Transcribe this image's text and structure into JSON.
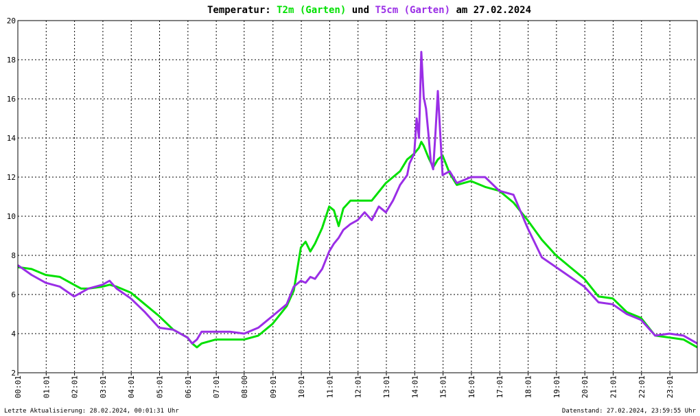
{
  "chart_data": {
    "type": "line",
    "title_parts": [
      {
        "text": "Temperatur: ",
        "color": "#000000"
      },
      {
        "text": "T2m (Garten)",
        "color": "#00e000"
      },
      {
        "text": " und ",
        "color": "#000000"
      },
      {
        "text": "T5cm (Garten)",
        "color": "#9a2ee6"
      },
      {
        "text": " am 27.02.2024",
        "color": "#000000"
      }
    ],
    "xlabel": "",
    "ylabel": "",
    "ylim": [
      2,
      20
    ],
    "yticks": [
      "2",
      "4",
      "6",
      "8",
      "10",
      "12",
      "14",
      "16",
      "18",
      "20"
    ],
    "xlim": [
      "00:01",
      "23:59"
    ],
    "xticks": [
      "00:01",
      "01:01",
      "02:01",
      "03:01",
      "04:01",
      "05:01",
      "06:01",
      "07:01",
      "08:00",
      "09:01",
      "10:01",
      "11:01",
      "12:01",
      "13:01",
      "14:01",
      "15:01",
      "16:01",
      "17:01",
      "18:01",
      "19:01",
      "20:01",
      "21:01",
      "22:01",
      "23:01"
    ],
    "grid": true,
    "series": [
      {
        "name": "T2m (Garten)",
        "color": "#00e000",
        "x": [
          "00:01",
          "00:30",
          "01:00",
          "01:30",
          "02:00",
          "02:15",
          "02:30",
          "03:00",
          "03:15",
          "03:30",
          "04:00",
          "04:30",
          "05:00",
          "05:30",
          "06:00",
          "06:10",
          "06:20",
          "06:30",
          "07:00",
          "07:30",
          "08:00",
          "08:30",
          "09:00",
          "09:30",
          "09:45",
          "10:00",
          "10:10",
          "10:20",
          "10:30",
          "10:45",
          "11:00",
          "11:10",
          "11:20",
          "11:30",
          "11:45",
          "12:00",
          "12:30",
          "13:00",
          "13:30",
          "13:45",
          "14:00",
          "14:10",
          "14:15",
          "14:20",
          "14:30",
          "14:40",
          "14:50",
          "15:00",
          "15:15",
          "15:30",
          "16:00",
          "16:30",
          "17:00",
          "17:30",
          "18:00",
          "18:30",
          "19:00",
          "19:30",
          "20:00",
          "20:30",
          "21:00",
          "21:30",
          "22:00",
          "22:30",
          "23:00",
          "23:30",
          "23:59"
        ],
        "y": [
          7.4,
          7.3,
          7.0,
          6.9,
          6.5,
          6.3,
          6.3,
          6.4,
          6.5,
          6.4,
          6.1,
          5.5,
          4.9,
          4.2,
          3.8,
          3.5,
          3.3,
          3.5,
          3.7,
          3.7,
          3.7,
          3.9,
          4.5,
          5.4,
          6.2,
          8.4,
          8.7,
          8.2,
          8.6,
          9.4,
          10.5,
          10.3,
          9.5,
          10.4,
          10.8,
          10.8,
          10.8,
          11.7,
          12.3,
          12.9,
          13.2,
          13.5,
          13.8,
          13.6,
          13.0,
          12.5,
          12.9,
          13.1,
          12.2,
          11.6,
          11.8,
          11.5,
          11.3,
          10.7,
          9.8,
          8.8,
          8.0,
          7.4,
          6.8,
          5.9,
          5.8,
          5.1,
          4.8,
          3.9,
          3.8,
          3.7,
          3.3
        ]
      },
      {
        "name": "T5cm (Garten)",
        "color": "#9a2ee6",
        "x": [
          "00:01",
          "00:30",
          "01:00",
          "01:30",
          "02:00",
          "02:15",
          "02:30",
          "03:00",
          "03:15",
          "03:30",
          "04:00",
          "04:30",
          "05:00",
          "05:30",
          "06:00",
          "06:10",
          "06:20",
          "06:30",
          "07:00",
          "07:30",
          "08:00",
          "08:30",
          "09:00",
          "09:30",
          "09:45",
          "10:00",
          "10:10",
          "10:20",
          "10:30",
          "10:45",
          "11:00",
          "11:10",
          "11:20",
          "11:30",
          "11:45",
          "12:00",
          "12:15",
          "12:30",
          "12:45",
          "13:00",
          "13:15",
          "13:30",
          "13:45",
          "13:50",
          "14:00",
          "14:05",
          "14:10",
          "14:15",
          "14:20",
          "14:25",
          "14:30",
          "14:35",
          "14:40",
          "14:45",
          "14:50",
          "15:00",
          "15:15",
          "15:30",
          "16:00",
          "16:30",
          "17:00",
          "17:30",
          "18:00",
          "18:30",
          "19:00",
          "19:30",
          "20:00",
          "20:30",
          "21:00",
          "21:30",
          "22:00",
          "22:30",
          "23:00",
          "23:30",
          "23:59"
        ],
        "y": [
          7.5,
          7.0,
          6.6,
          6.4,
          5.9,
          6.1,
          6.3,
          6.5,
          6.7,
          6.3,
          5.8,
          5.1,
          4.3,
          4.2,
          3.8,
          3.5,
          3.7,
          4.1,
          4.1,
          4.1,
          4.0,
          4.3,
          4.9,
          5.5,
          6.4,
          6.7,
          6.6,
          6.9,
          6.8,
          7.3,
          8.2,
          8.6,
          8.9,
          9.3,
          9.6,
          9.8,
          10.2,
          9.8,
          10.5,
          10.2,
          10.8,
          11.6,
          12.1,
          12.7,
          13.2,
          15.0,
          14.0,
          18.4,
          16.1,
          15.5,
          14.2,
          12.8,
          12.4,
          14.3,
          16.4,
          12.1,
          12.3,
          11.7,
          12.0,
          12.0,
          11.3,
          11.1,
          9.4,
          7.9,
          7.4,
          6.9,
          6.4,
          5.6,
          5.5,
          5.0,
          4.7,
          3.9,
          4.0,
          3.9,
          3.5
        ]
      }
    ],
    "footer_left": "Letzte Aktualisierung: 28.02.2024, 00:01:31 Uhr",
    "footer_right": "Datenstand: 27.02.2024, 23:59:55 Uhr"
  }
}
